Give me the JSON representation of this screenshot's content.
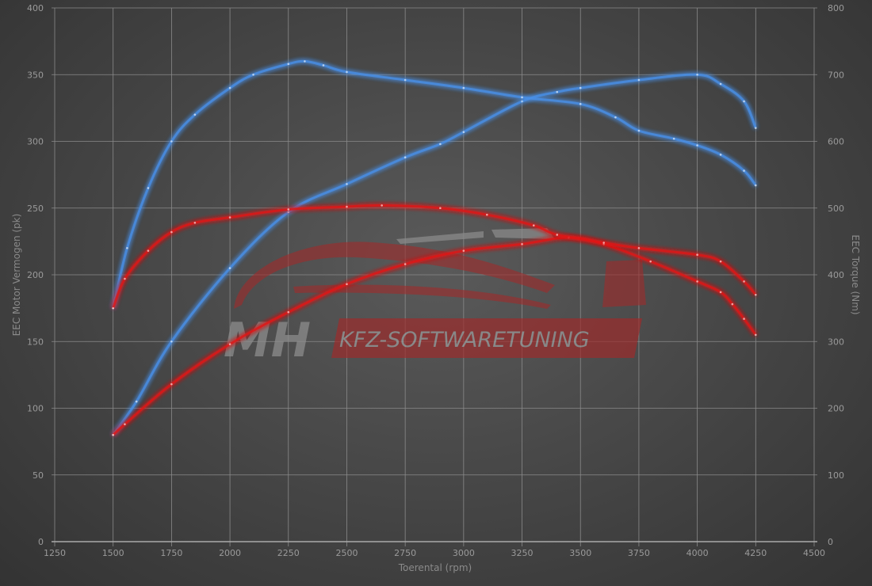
{
  "chart_data": {
    "type": "line",
    "title": "",
    "xlabel": "Toerental (rpm)",
    "ylabel": "EEC Motor Vermogen (pk)",
    "y2label": "EEC Torque (Nm)",
    "xlim": [
      1250,
      4500
    ],
    "ylim": [
      0,
      400
    ],
    "y2lim": [
      0,
      800
    ],
    "xticks": [
      1250,
      1500,
      1750,
      2000,
      2250,
      2500,
      2750,
      3000,
      3250,
      3500,
      3750,
      4000,
      4250,
      4500
    ],
    "yticks": [
      0,
      50,
      100,
      150,
      200,
      250,
      300,
      350,
      400
    ],
    "y2ticks": [
      0,
      100,
      200,
      300,
      400,
      500,
      600,
      700,
      800
    ],
    "grid": true,
    "legend": "none",
    "colors": {
      "tuned": "#4a90e8",
      "stock": "#e01818"
    },
    "series": [
      {
        "axis": "left",
        "color": "#4a90e8",
        "x": [
          1500,
          1600,
          1750,
          2000,
          2250,
          2500,
          2750,
          2900,
          3000,
          3250,
          3400,
          3500,
          3750,
          4000,
          4100,
          4200,
          4250
        ],
        "y": [
          80,
          105,
          150,
          205,
          247,
          268,
          288,
          298,
          307,
          330,
          337,
          340,
          346,
          350,
          343,
          330,
          310
        ]
      },
      {
        "axis": "right",
        "color": "#4a90e8",
        "x": [
          1500,
          1560,
          1650,
          1750,
          1850,
          2000,
          2100,
          2250,
          2320,
          2400,
          2500,
          2750,
          3000,
          3250,
          3500,
          3650,
          3750,
          3900,
          4000,
          4100,
          4200,
          4250
        ],
        "y": [
          350,
          440,
          530,
          600,
          640,
          680,
          700,
          716,
          720,
          714,
          704,
          692,
          680,
          666,
          656,
          636,
          616,
          604,
          594,
          580,
          556,
          534
        ]
      },
      {
        "axis": "left",
        "color": "#e01818",
        "x": [
          1500,
          1550,
          1750,
          2000,
          2250,
          2500,
          2750,
          3000,
          3250,
          3450,
          3600,
          3800,
          4000,
          4100,
          4150,
          4200,
          4250
        ],
        "y": [
          80,
          88,
          118,
          148,
          172,
          193,
          208,
          218,
          223,
          228,
          223,
          210,
          195,
          187,
          178,
          167,
          155
        ]
      },
      {
        "axis": "right",
        "color": "#e01818",
        "x": [
          1500,
          1550,
          1650,
          1750,
          1850,
          2000,
          2250,
          2500,
          2650,
          2900,
          3100,
          3300,
          3400,
          3600,
          3750,
          4000,
          4100,
          4200,
          4250
        ],
        "y": [
          350,
          394,
          436,
          464,
          478,
          486,
          498,
          502,
          504,
          500,
          490,
          474,
          460,
          448,
          440,
          430,
          420,
          390,
          370
        ]
      }
    ]
  },
  "watermark": {
    "brand": "MH",
    "tagline": "KFZ-SOFTWARETUNING"
  }
}
